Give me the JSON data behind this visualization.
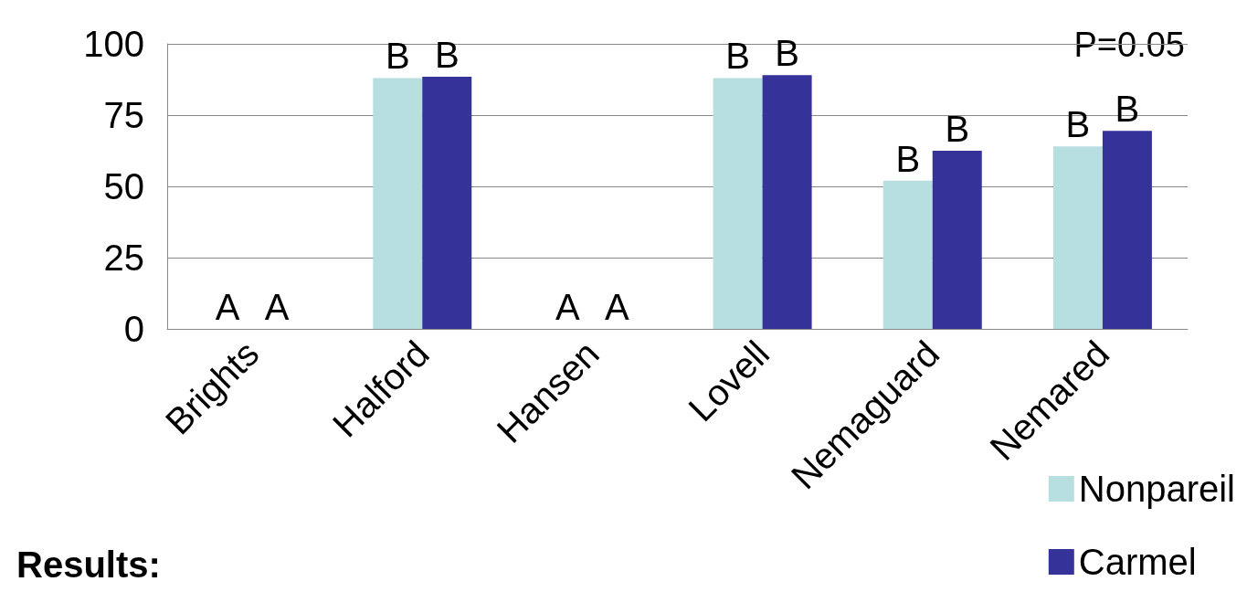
{
  "chart_data": {
    "type": "bar",
    "categories": [
      "Brights",
      "Halford",
      "Hansen",
      "Lovell",
      "Nemaguard",
      "Nemared"
    ],
    "series": [
      {
        "name": "Nonpareil",
        "color": "#b8dfe0",
        "values": [
          0,
          88,
          0,
          88,
          52,
          64
        ],
        "value_labels": [
          "A",
          "B",
          "A",
          "B",
          "B",
          "B"
        ]
      },
      {
        "name": "Carmel",
        "color": "#35339a",
        "values": [
          0,
          88.5,
          0,
          89,
          62.5,
          69.5
        ],
        "value_labels": [
          "A",
          "B",
          "A",
          "B",
          "B",
          "B"
        ]
      }
    ],
    "ylim": [
      0,
      100
    ],
    "yticks": [
      0,
      25,
      50,
      75,
      100
    ],
    "grid": "y",
    "legend": "bottom right",
    "annotations": [
      "P=0.05",
      "Results:"
    ]
  }
}
